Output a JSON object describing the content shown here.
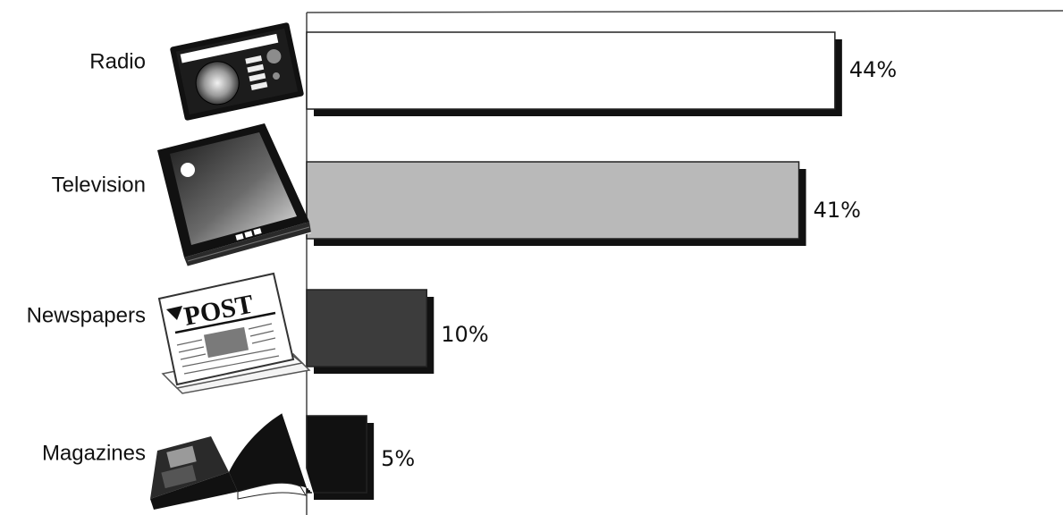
{
  "chart_data": {
    "type": "bar",
    "orientation": "horizontal",
    "categories": [
      "Radio",
      "Television",
      "Newspapers",
      "Magazines"
    ],
    "values": [
      44,
      41,
      10,
      5
    ],
    "value_labels": [
      "44%",
      "41%",
      "10%",
      "5%"
    ],
    "xlim": [
      0,
      63
    ],
    "title": "",
    "xlabel": "",
    "ylabel": "",
    "grid": false,
    "legend": "none",
    "bar_colors": [
      "#ffffff",
      "#b9b9b9",
      "#3c3c3c",
      "#111111"
    ],
    "shadow_color": "#111111",
    "axis_color": "#444444"
  },
  "icons": [
    "radio-icon",
    "television-icon",
    "newspaper-icon",
    "magazine-icon"
  ],
  "newspaper_masthead": "POST"
}
